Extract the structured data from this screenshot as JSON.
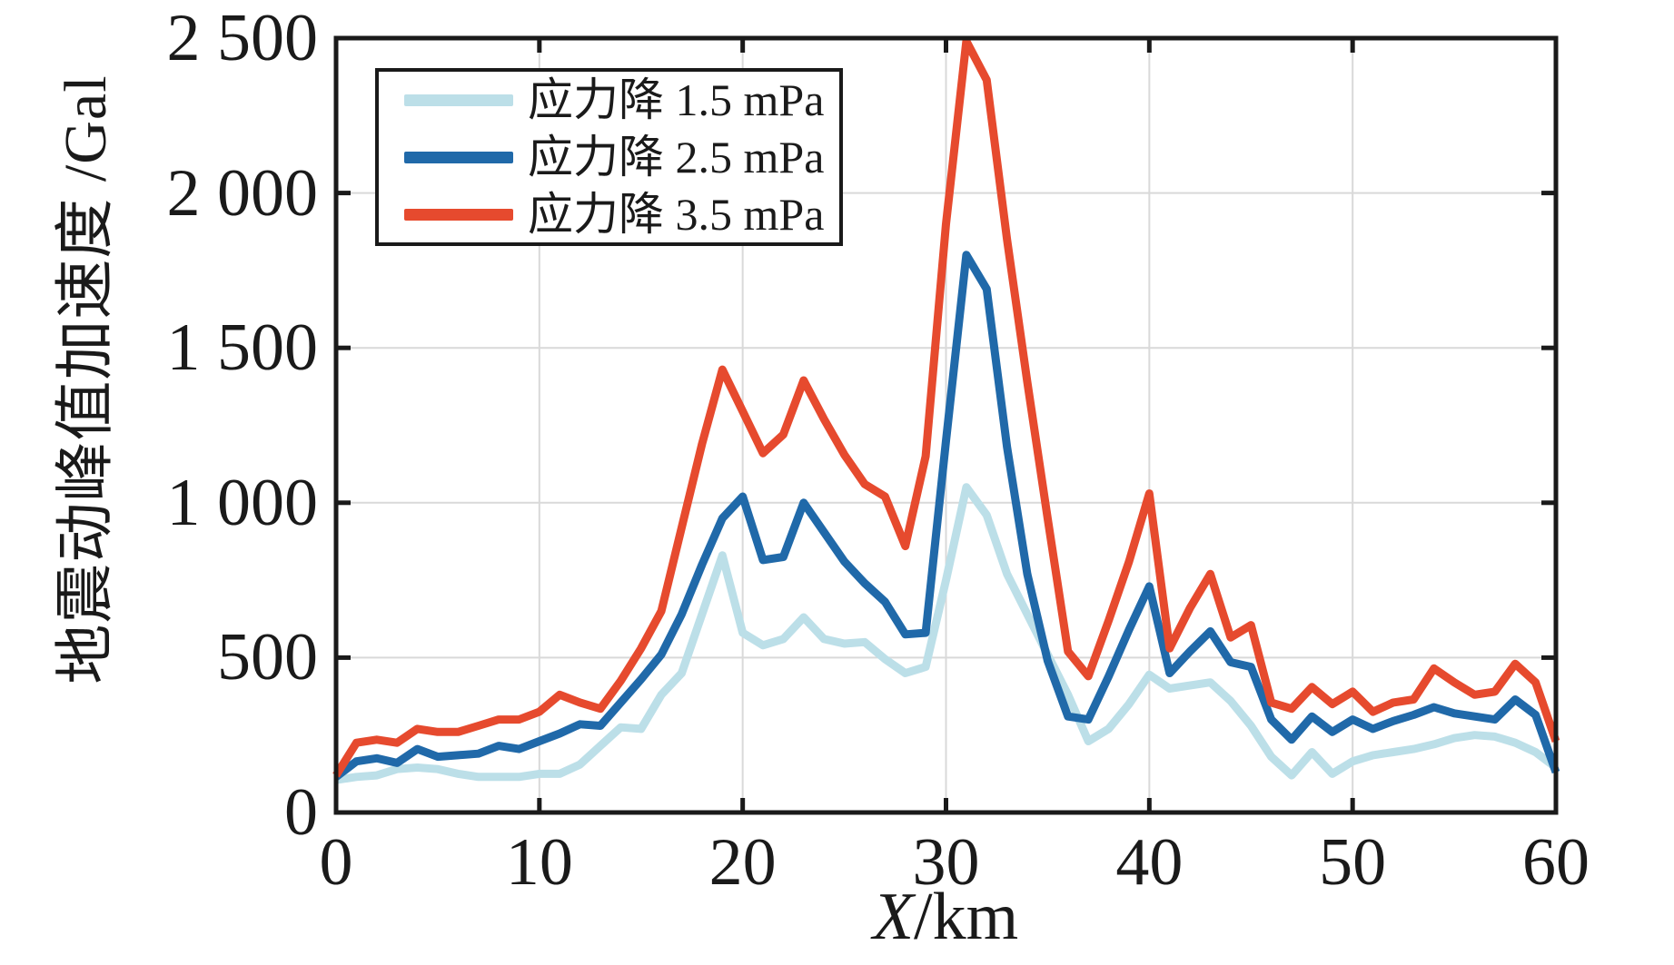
{
  "background_color": "#ffffff",
  "axis_color": "#1a1a1a",
  "grid_color": "#d9d9d9",
  "chart_data": {
    "type": "line",
    "title": "",
    "ylabel": "地震动峰值加速度 /Gal",
    "xlabel_variable": "X",
    "xlabel_unit": "/km",
    "xlim": [
      0,
      60
    ],
    "ylim": [
      0,
      2500
    ],
    "grid": true,
    "legend_position": "top-left-inside",
    "x_ticks": [
      0,
      10,
      20,
      30,
      40,
      50,
      60
    ],
    "x_tick_labels": [
      "0",
      "10",
      "20",
      "30",
      "40",
      "50",
      "60"
    ],
    "y_ticks": [
      0,
      500,
      1000,
      1500,
      2000,
      2500
    ],
    "y_tick_labels": [
      "0",
      "500",
      "1 000",
      "1 500",
      "2 000",
      "2 500"
    ],
    "x": [
      0,
      1,
      2,
      3,
      4,
      5,
      6,
      7,
      8,
      9,
      10,
      11,
      12,
      13,
      14,
      15,
      16,
      17,
      18,
      19,
      20,
      21,
      22,
      23,
      24,
      25,
      26,
      27,
      28,
      29,
      30,
      31,
      32,
      33,
      34,
      35,
      36,
      37,
      38,
      39,
      40,
      41,
      42,
      43,
      44,
      45,
      46,
      47,
      48,
      49,
      50,
      51,
      52,
      53,
      54,
      55,
      56,
      57,
      58,
      59,
      60
    ],
    "series": [
      {
        "name": "应力降 1.5 mPa",
        "color": "#BCDFE8",
        "values": [
          105,
          115,
          120,
          140,
          145,
          140,
          125,
          115,
          115,
          115,
          125,
          125,
          155,
          215,
          275,
          270,
          380,
          450,
          640,
          830,
          580,
          540,
          560,
          630,
          560,
          545,
          550,
          495,
          450,
          470,
          750,
          1050,
          960,
          770,
          640,
          510,
          380,
          230,
          270,
          350,
          445,
          400,
          410,
          420,
          360,
          280,
          180,
          120,
          195,
          125,
          165,
          185,
          195,
          205,
          220,
          240,
          250,
          245,
          225,
          195,
          145
        ]
      },
      {
        "name": "应力降 2.5 mPa",
        "color": "#2069A9",
        "values": [
          115,
          165,
          175,
          160,
          205,
          180,
          185,
          190,
          215,
          205,
          230,
          255,
          285,
          280,
          355,
          430,
          510,
          640,
          800,
          950,
          1020,
          815,
          825,
          1000,
          905,
          810,
          740,
          680,
          575,
          580,
          1200,
          1800,
          1690,
          1180,
          770,
          490,
          310,
          300,
          440,
          590,
          730,
          450,
          520,
          585,
          485,
          470,
          300,
          235,
          310,
          260,
          300,
          270,
          295,
          315,
          340,
          320,
          310,
          300,
          365,
          315,
          130
        ]
      },
      {
        "name": "应力降 3.5 mPa",
        "color": "#E64A2E",
        "values": [
          120,
          225,
          235,
          225,
          270,
          260,
          260,
          280,
          300,
          300,
          325,
          380,
          355,
          335,
          425,
          530,
          650,
          920,
          1190,
          1430,
          1295,
          1160,
          1220,
          1395,
          1270,
          1155,
          1060,
          1020,
          860,
          1150,
          1900,
          2490,
          2365,
          1850,
          1390,
          950,
          520,
          440,
          620,
          810,
          1030,
          530,
          660,
          770,
          565,
          605,
          355,
          335,
          405,
          350,
          390,
          325,
          355,
          365,
          465,
          420,
          380,
          390,
          480,
          420,
          230
        ]
      }
    ]
  }
}
